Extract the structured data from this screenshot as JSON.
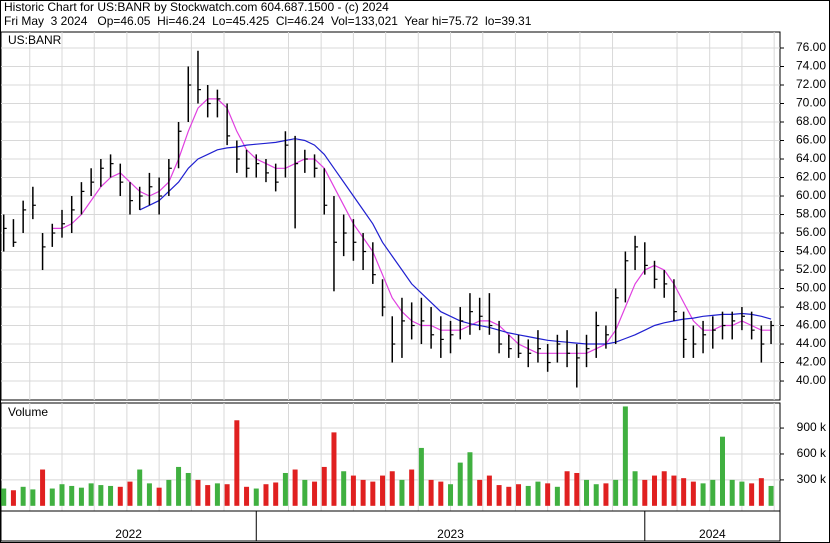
{
  "chart_data": {
    "type": "ohlc",
    "title": "Historic Chart for US:BANR by Stockwatch.com 604.687.1500 - (c) 2024",
    "subtitle": "Fri May  3 2024   Op=46.05  Hi=46.24  Lo=45.425  Cl=46.24  Vol=133,021  Year hi=75.72  lo=39.31",
    "symbol": "US:BANR",
    "bar_color": "#000000",
    "grid": true,
    "xlim": [
      2022.343,
      2024.348
    ],
    "years": [
      2022,
      2023,
      2024
    ],
    "xgrid": [
      2022.417,
      2022.5,
      2022.583,
      2022.667,
      2022.75,
      2022.833,
      2022.917,
      2023.083,
      2023.167,
      2023.25,
      2023.333,
      2023.417,
      2023.5,
      2023.583,
      2023.667,
      2023.75,
      2023.833,
      2023.917,
      2024.083,
      2024.167,
      2024.25,
      2024.333
    ],
    "ylim": [
      37.95,
      77.73
    ],
    "yticks": [
      {
        "value": 40,
        "label": "40.00"
      },
      {
        "value": 42,
        "label": "42.00"
      },
      {
        "value": 44,
        "label": "44.00"
      },
      {
        "value": 46,
        "label": "46.00"
      },
      {
        "value": 48,
        "label": "48.00"
      },
      {
        "value": 50,
        "label": "50.00"
      },
      {
        "value": 52,
        "label": "52.00"
      },
      {
        "value": 54,
        "label": "54.00"
      },
      {
        "value": 56,
        "label": "56.00"
      },
      {
        "value": 58,
        "label": "58.00"
      },
      {
        "value": 60,
        "label": "60.00"
      },
      {
        "value": 62,
        "label": "62.00"
      },
      {
        "value": 64,
        "label": "64.00"
      },
      {
        "value": 66,
        "label": "66.00"
      },
      {
        "value": 68,
        "label": "68.00"
      },
      {
        "value": 70,
        "label": "70.00"
      },
      {
        "value": 72,
        "label": "72.00"
      },
      {
        "value": 74,
        "label": "74.00"
      },
      {
        "value": 76,
        "label": "76.00"
      }
    ],
    "x": [
      2022.35,
      2022.375,
      2022.4,
      2022.425,
      2022.45,
      2022.475,
      2022.5,
      2022.525,
      2022.55,
      2022.575,
      2022.6,
      2022.625,
      2022.65,
      2022.675,
      2022.7,
      2022.725,
      2022.75,
      2022.775,
      2022.8,
      2022.825,
      2022.85,
      2022.875,
      2022.9,
      2022.925,
      2022.95,
      2022.975,
      2023,
      2023.025,
      2023.05,
      2023.075,
      2023.1,
      2023.125,
      2023.15,
      2023.175,
      2023.2,
      2023.225,
      2023.25,
      2023.275,
      2023.3,
      2023.325,
      2023.35,
      2023.375,
      2023.4,
      2023.425,
      2023.45,
      2023.475,
      2023.5,
      2023.525,
      2023.55,
      2023.575,
      2023.6,
      2023.625,
      2023.65,
      2023.675,
      2023.7,
      2023.725,
      2023.75,
      2023.775,
      2023.8,
      2023.825,
      2023.85,
      2023.875,
      2023.9,
      2023.925,
      2023.95,
      2023.975,
      2024,
      2024.025,
      2024.05,
      2024.075,
      2024.1,
      2024.125,
      2024.15,
      2024.175,
      2024.2,
      2024.225,
      2024.25,
      2024.275,
      2024.3,
      2024.325
    ],
    "high": [
      58,
      57.5,
      59.5,
      61,
      56,
      57,
      58.5,
      60,
      61.5,
      63,
      64,
      64.5,
      63.5,
      61.5,
      61,
      62.5,
      62,
      64,
      68,
      74,
      75.7,
      72,
      71.5,
      70,
      66,
      65,
      64.5,
      64,
      63.5,
      67,
      66.5,
      65,
      64.5,
      63,
      60,
      58,
      57.5,
      56,
      55,
      51,
      47,
      49,
      48.5,
      49,
      48,
      47,
      46.5,
      48,
      49.5,
      49,
      49.5,
      46.5,
      45,
      45,
      44.5,
      45.5,
      44,
      45,
      45.5,
      44,
      45,
      47.5,
      46,
      50,
      54,
      55.7,
      55,
      53,
      52,
      51,
      47.5,
      46,
      46.5,
      47,
      47.5,
      47.5,
      48,
      47.5,
      46,
      46.5
    ],
    "low": [
      54,
      54.5,
      56,
      57.5,
      52,
      54.5,
      55.5,
      56,
      58,
      60,
      61,
      62,
      60,
      58,
      58.5,
      59,
      58,
      60,
      63,
      68,
      70,
      68.5,
      68.5,
      65.5,
      62.5,
      62,
      62,
      61.5,
      60.5,
      62,
      56.5,
      62.5,
      62,
      58,
      49.7,
      53.5,
      53,
      52,
      50.5,
      47,
      42,
      42.5,
      44.5,
      44,
      43.5,
      42.5,
      43,
      44.5,
      45,
      45.5,
      45,
      43,
      42.5,
      42.5,
      41.5,
      42,
      41,
      42,
      41.5,
      39.3,
      41.5,
      42.5,
      43.5,
      44,
      48.5,
      52,
      51.5,
      50,
      49,
      46.5,
      42.5,
      42.5,
      43,
      43.5,
      44.5,
      44.5,
      45.5,
      44.5,
      42,
      44
    ],
    "close": [
      56.5,
      55,
      58.5,
      59,
      54.5,
      56,
      57,
      58.5,
      60.5,
      61.5,
      63,
      63.5,
      61.5,
      59.5,
      60,
      61,
      60,
      63,
      67,
      72,
      71.5,
      70,
      70.5,
      66.5,
      64,
      63,
      63.5,
      62.5,
      61.5,
      65.5,
      63.5,
      64,
      63,
      59,
      55,
      56,
      55,
      54,
      51.5,
      48,
      44,
      46.5,
      46,
      46.5,
      45,
      44.5,
      45,
      46.5,
      47.5,
      47,
      46,
      44,
      43.5,
      43,
      43,
      43.5,
      42,
      44,
      43,
      42.5,
      43.5,
      46,
      45,
      49,
      53,
      54.5,
      52.5,
      51,
      50.5,
      47.5,
      44.5,
      44,
      45,
      45.5,
      46,
      46.5,
      47,
      45.5,
      44,
      46
    ],
    "moving_averages": [
      {
        "color": "#e040e0",
        "values": [
          null,
          null,
          null,
          null,
          null,
          56.5,
          56.5,
          57,
          58,
          59.5,
          61,
          62,
          62.5,
          61.5,
          60.5,
          60,
          60.5,
          61.5,
          64,
          67,
          69.5,
          70.5,
          70.5,
          69.5,
          67,
          65,
          64,
          63.5,
          63,
          63,
          63.5,
          64,
          64,
          63,
          61,
          59,
          57,
          55.5,
          54,
          51.5,
          49,
          47.5,
          46.5,
          46,
          46,
          45.5,
          45.5,
          45.5,
          46,
          46.5,
          46.5,
          46,
          45,
          44,
          43.5,
          43,
          43,
          43,
          43,
          43,
          43,
          43.5,
          44,
          45.5,
          48,
          50.5,
          52,
          52.5,
          52,
          50.5,
          48.5,
          46.5,
          45.5,
          45.5,
          46,
          46,
          46.5,
          46,
          45.5,
          45.5
        ]
      },
      {
        "color": "#2020d0",
        "values": [
          null,
          null,
          null,
          null,
          null,
          null,
          null,
          null,
          null,
          null,
          null,
          null,
          null,
          null,
          58.5,
          59,
          59.5,
          60.5,
          61.5,
          63,
          64,
          64.5,
          65,
          65.2,
          65.3,
          65.5,
          65.6,
          65.7,
          65.8,
          66,
          66.2,
          66,
          65.5,
          64.5,
          63,
          61.5,
          60,
          58.5,
          57,
          55,
          53.5,
          52,
          50.5,
          49.5,
          48.5,
          47.5,
          47,
          46.5,
          46.2,
          46,
          45.8,
          45.5,
          45.2,
          45,
          44.8,
          44.6,
          44.4,
          44.3,
          44.2,
          44.1,
          44,
          44,
          44,
          44.2,
          44.6,
          45,
          45.5,
          46,
          46.3,
          46.5,
          46.7,
          46.8,
          47,
          47.1,
          47.2,
          47.2,
          47.3,
          47.2,
          47,
          46.7
        ]
      }
    ],
    "volume": {
      "label": "Volume",
      "up_color": "#40b040",
      "down_color": "#e02020",
      "ylim": [
        -60000,
        1190000
      ],
      "yticks": [
        {
          "value": 300000,
          "label": "300 k"
        },
        {
          "value": 600000,
          "label": "600 k"
        },
        {
          "value": 900000,
          "label": "900 k"
        }
      ],
      "values": [
        200000,
        180000,
        220000,
        190000,
        420000,
        200000,
        250000,
        230000,
        210000,
        260000,
        240000,
        230000,
        220000,
        280000,
        420000,
        260000,
        210000,
        300000,
        450000,
        380000,
        300000,
        240000,
        260000,
        250000,
        990000,
        220000,
        200000,
        250000,
        270000,
        380000,
        420000,
        300000,
        280000,
        450000,
        850000,
        400000,
        350000,
        300000,
        280000,
        350000,
        400000,
        300000,
        420000,
        670000,
        300000,
        280000,
        250000,
        500000,
        620000,
        300000,
        350000,
        240000,
        220000,
        250000,
        230000,
        280000,
        260000,
        220000,
        400000,
        380000,
        300000,
        250000,
        260000,
        300000,
        1150000,
        400000,
        300000,
        350000,
        400000,
        350000,
        320000,
        280000,
        260000,
        300000,
        800000,
        300000,
        280000,
        260000,
        320000,
        230000
      ]
    }
  }
}
